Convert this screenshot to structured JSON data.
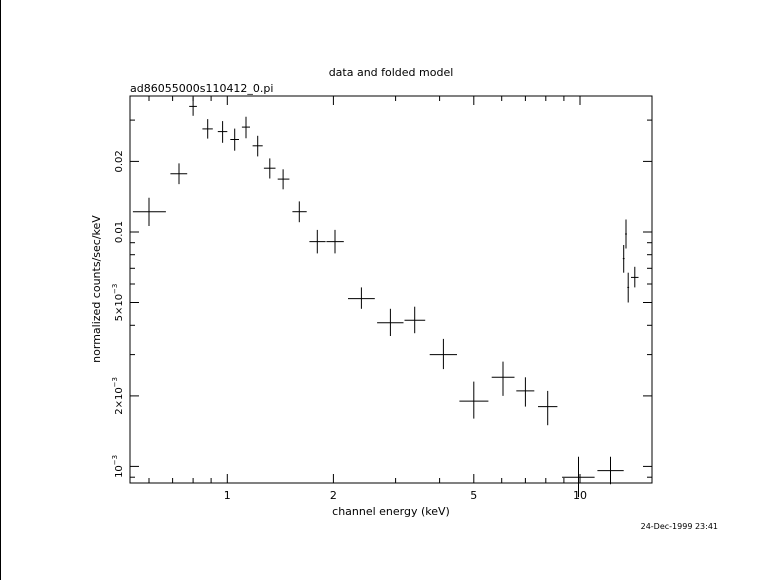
{
  "chart_data": {
    "type": "scatter",
    "title": "data and folded model",
    "subtitle": "ad86055000s110412_0.pi",
    "xlabel": "channel energy (keV)",
    "ylabel": "normalized counts/sec/keV",
    "timestamp": "24-Dec-1999 23:41",
    "xscale": "log",
    "yscale": "log",
    "xlim": [
      0.53,
      16.0
    ],
    "ylim": [
      0.00085,
      0.038
    ],
    "x_ticks": [
      {
        "value": 1,
        "label": "1"
      },
      {
        "value": 2,
        "label": "2"
      },
      {
        "value": 5,
        "label": "5"
      },
      {
        "value": 10,
        "label": "10"
      }
    ],
    "y_ticks": [
      {
        "value": 0.001,
        "base": "10",
        "sup": "−3"
      },
      {
        "value": 0.002,
        "base": "2×10",
        "sup": "−3"
      },
      {
        "value": 0.005,
        "base": "5×10",
        "sup": "−3"
      },
      {
        "value": 0.01,
        "base": "0.01",
        "sup": ""
      },
      {
        "value": 0.02,
        "base": "0.02",
        "sup": ""
      }
    ],
    "color": "#000000",
    "series": [
      {
        "points": [
          {
            "x": 0.6,
            "xlo": 0.54,
            "xhi": 0.67,
            "y": 0.0122,
            "ylo": 0.0106,
            "yhi": 0.014
          },
          {
            "x": 0.73,
            "xlo": 0.69,
            "xhi": 0.77,
            "y": 0.0177,
            "ylo": 0.016,
            "yhi": 0.0196
          },
          {
            "x": 0.8,
            "xlo": 0.78,
            "xhi": 0.82,
            "y": 0.0343,
            "ylo": 0.0313,
            "yhi": 0.0375
          },
          {
            "x": 0.88,
            "xlo": 0.85,
            "xhi": 0.91,
            "y": 0.0275,
            "ylo": 0.025,
            "yhi": 0.0303
          },
          {
            "x": 0.97,
            "xlo": 0.94,
            "xhi": 1.0,
            "y": 0.0268,
            "ylo": 0.024,
            "yhi": 0.0297
          },
          {
            "x": 1.05,
            "xlo": 1.02,
            "xhi": 1.08,
            "y": 0.0248,
            "ylo": 0.0222,
            "yhi": 0.0276
          },
          {
            "x": 1.13,
            "xlo": 1.1,
            "xhi": 1.16,
            "y": 0.028,
            "ylo": 0.0251,
            "yhi": 0.031
          },
          {
            "x": 1.22,
            "xlo": 1.18,
            "xhi": 1.26,
            "y": 0.0233,
            "ylo": 0.021,
            "yhi": 0.0257
          },
          {
            "x": 1.32,
            "xlo": 1.27,
            "xhi": 1.37,
            "y": 0.0187,
            "ylo": 0.0169,
            "yhi": 0.0206
          },
          {
            "x": 1.44,
            "xlo": 1.39,
            "xhi": 1.5,
            "y": 0.0168,
            "ylo": 0.0152,
            "yhi": 0.0185
          },
          {
            "x": 1.6,
            "xlo": 1.53,
            "xhi": 1.68,
            "y": 0.0122,
            "ylo": 0.011,
            "yhi": 0.0135
          },
          {
            "x": 1.8,
            "xlo": 1.71,
            "xhi": 1.9,
            "y": 0.0091,
            "ylo": 0.0081,
            "yhi": 0.0102
          },
          {
            "x": 2.02,
            "xlo": 1.91,
            "xhi": 2.14,
            "y": 0.0091,
            "ylo": 0.0081,
            "yhi": 0.0102
          },
          {
            "x": 2.4,
            "xlo": 2.2,
            "xhi": 2.62,
            "y": 0.0052,
            "ylo": 0.0047,
            "yhi": 0.0058
          },
          {
            "x": 2.9,
            "xlo": 2.66,
            "xhi": 3.16,
            "y": 0.0041,
            "ylo": 0.0036,
            "yhi": 0.0047
          },
          {
            "x": 3.4,
            "xlo": 3.18,
            "xhi": 3.64,
            "y": 0.0042,
            "ylo": 0.0037,
            "yhi": 0.0048
          },
          {
            "x": 4.1,
            "xlo": 3.75,
            "xhi": 4.48,
            "y": 0.003,
            "ylo": 0.0026,
            "yhi": 0.0035
          },
          {
            "x": 5.0,
            "xlo": 4.55,
            "xhi": 5.5,
            "y": 0.0019,
            "ylo": 0.0016,
            "yhi": 0.0023
          },
          {
            "x": 6.05,
            "xlo": 5.62,
            "xhi": 6.52,
            "y": 0.0024,
            "ylo": 0.002,
            "yhi": 0.0028
          },
          {
            "x": 7.0,
            "xlo": 6.6,
            "xhi": 7.42,
            "y": 0.0021,
            "ylo": 0.0018,
            "yhi": 0.0024
          },
          {
            "x": 8.1,
            "xlo": 7.6,
            "xhi": 8.63,
            "y": 0.0018,
            "ylo": 0.0015,
            "yhi": 0.0021
          },
          {
            "x": 9.9,
            "xlo": 8.9,
            "xhi": 11.0,
            "y": 0.0009,
            "ylo": 0.00074,
            "yhi": 0.0011
          },
          {
            "x": 12.2,
            "xlo": 11.2,
            "xhi": 13.3,
            "y": 0.00096,
            "ylo": 0.00084,
            "yhi": 0.0011
          },
          {
            "x": 13.3,
            "xlo": 13.22,
            "xhi": 13.38,
            "y": 0.0077,
            "ylo": 0.0067,
            "yhi": 0.0088
          },
          {
            "x": 13.5,
            "xlo": 13.42,
            "xhi": 13.58,
            "y": 0.0098,
            "ylo": 0.0085,
            "yhi": 0.0113
          },
          {
            "x": 13.7,
            "xlo": 13.62,
            "xhi": 13.78,
            "y": 0.0058,
            "ylo": 0.005,
            "yhi": 0.0067
          },
          {
            "x": 14.3,
            "xlo": 13.95,
            "xhi": 14.65,
            "y": 0.0064,
            "ylo": 0.0058,
            "yhi": 0.0071
          }
        ]
      }
    ]
  }
}
